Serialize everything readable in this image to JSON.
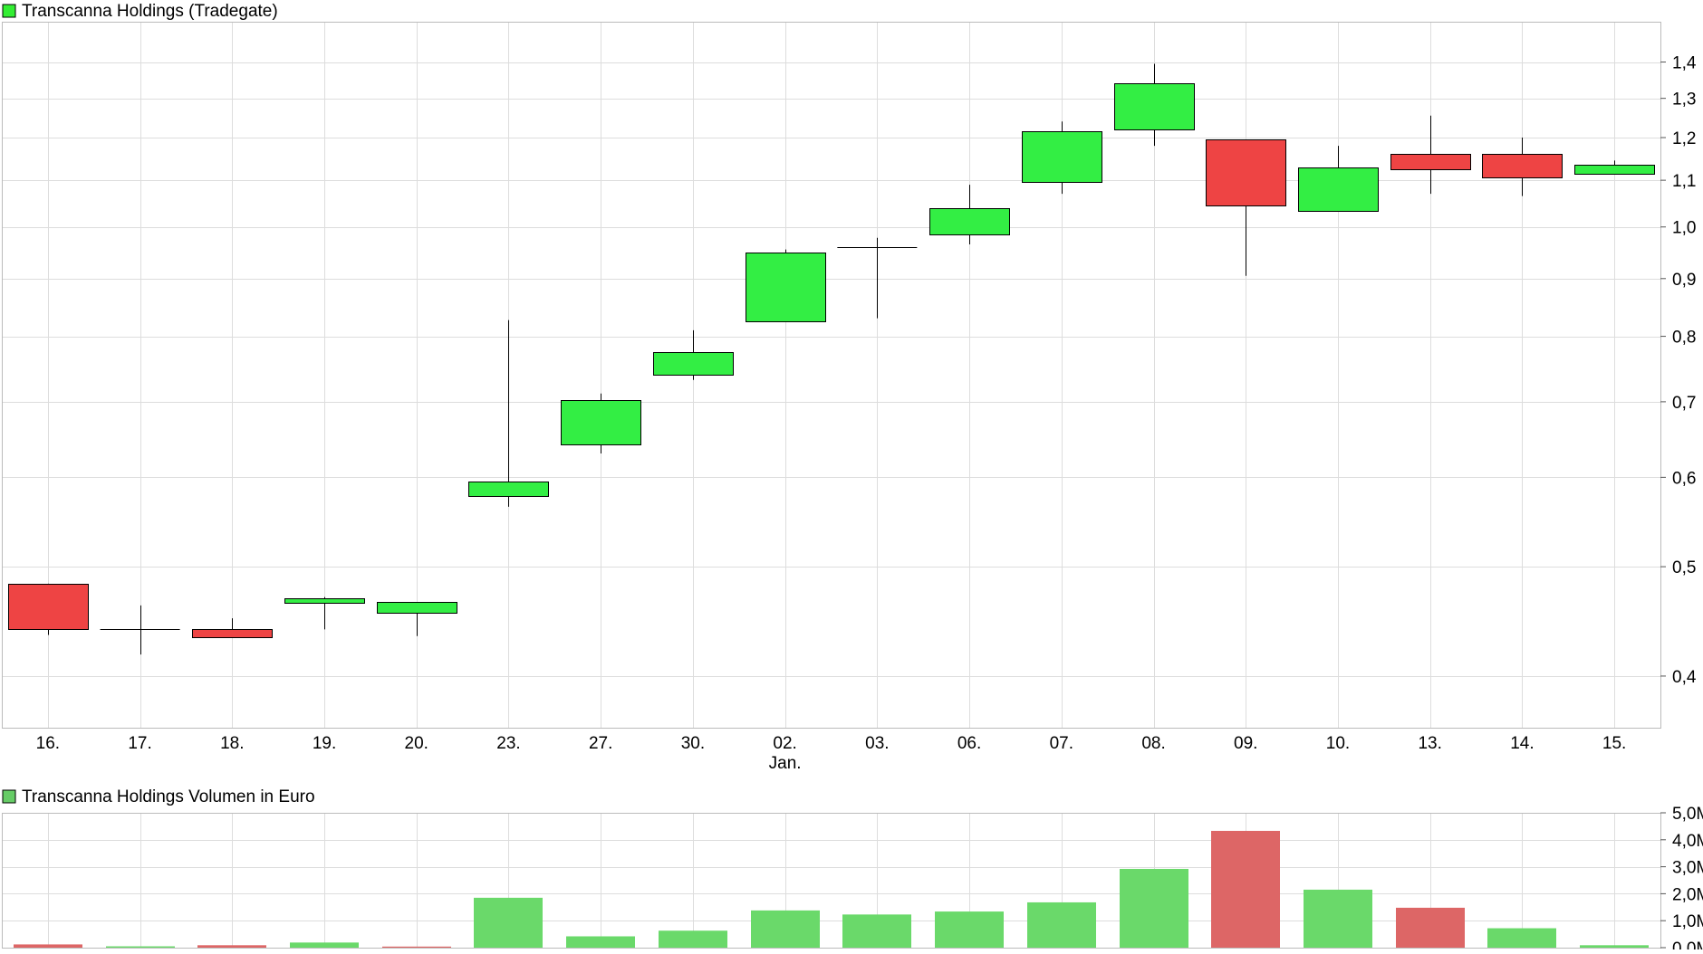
{
  "chart_data": [
    {
      "type": "candlestick",
      "title": "Transcanna Holdings (Tradegate)",
      "legend_color": "#33ee33",
      "up_color": "#33ee44",
      "down_color": "#ee4444",
      "grid": true,
      "y_scale": "log",
      "ylim": [
        0.36,
        1.52
      ],
      "y_ticks": [
        {
          "value": 1.4,
          "label": "1,4"
        },
        {
          "value": 1.3,
          "label": "1,3"
        },
        {
          "value": 1.2,
          "label": "1,2"
        },
        {
          "value": 1.1,
          "label": "1,1"
        },
        {
          "value": 1.0,
          "label": "1,0"
        },
        {
          "value": 0.9,
          "label": "0,9"
        },
        {
          "value": 0.8,
          "label": "0,8"
        },
        {
          "value": 0.7,
          "label": "0,7"
        },
        {
          "value": 0.6,
          "label": "0,6"
        },
        {
          "value": 0.5,
          "label": "0,5"
        },
        {
          "value": 0.4,
          "label": "0,4"
        }
      ],
      "categories": [
        "16.",
        "17.",
        "18.",
        "19.",
        "20.",
        "23.",
        "27.",
        "30.",
        "02.",
        "03.",
        "06.",
        "07.",
        "08.",
        "09.",
        "10.",
        "13.",
        "14.",
        "15."
      ],
      "month_label": {
        "index": 8,
        "text": "Jan."
      },
      "ohlc": [
        {
          "open": 0.483,
          "high": 0.483,
          "low": 0.435,
          "close": 0.44
        },
        {
          "open": 0.44,
          "high": 0.462,
          "low": 0.418,
          "close": 0.44
        },
        {
          "open": 0.44,
          "high": 0.45,
          "low": 0.433,
          "close": 0.433
        },
        {
          "open": 0.465,
          "high": 0.47,
          "low": 0.44,
          "close": 0.469
        },
        {
          "open": 0.455,
          "high": 0.465,
          "low": 0.434,
          "close": 0.465
        },
        {
          "open": 0.578,
          "high": 0.827,
          "low": 0.565,
          "close": 0.595
        },
        {
          "open": 0.642,
          "high": 0.712,
          "low": 0.63,
          "close": 0.703
        },
        {
          "open": 0.74,
          "high": 0.81,
          "low": 0.732,
          "close": 0.775
        },
        {
          "open": 0.825,
          "high": 0.955,
          "low": 0.825,
          "close": 0.95
        },
        {
          "open": 0.96,
          "high": 0.978,
          "low": 0.83,
          "close": 0.96
        },
        {
          "open": 0.985,
          "high": 1.09,
          "low": 0.965,
          "close": 1.04
        },
        {
          "open": 1.095,
          "high": 1.24,
          "low": 1.07,
          "close": 1.215
        },
        {
          "open": 1.22,
          "high": 1.395,
          "low": 1.18,
          "close": 1.34
        },
        {
          "open": 1.195,
          "high": 1.195,
          "low": 0.905,
          "close": 1.045
        },
        {
          "open": 1.035,
          "high": 1.18,
          "low": 1.035,
          "close": 1.13
        },
        {
          "open": 1.16,
          "high": 1.255,
          "low": 1.07,
          "close": 1.125
        },
        {
          "open": 1.16,
          "high": 1.2,
          "low": 1.065,
          "close": 1.105
        },
        {
          "open": 1.115,
          "high": 1.145,
          "low": 1.115,
          "close": 1.135
        }
      ]
    },
    {
      "type": "bar",
      "title": "Transcanna Holdings Volumen in Euro",
      "legend_color": "#66cc66",
      "up_color": "#6ad96a",
      "down_color": "#dd6666",
      "grid": true,
      "ylim": [
        0,
        5000000
      ],
      "y_ticks": [
        {
          "value": 5000000,
          "label": "5,0M"
        },
        {
          "value": 4000000,
          "label": "4,0M"
        },
        {
          "value": 3000000,
          "label": "3,0M"
        },
        {
          "value": 2000000,
          "label": "2,0M"
        },
        {
          "value": 1000000,
          "label": "1,0M"
        },
        {
          "value": 0,
          "label": "0,0M"
        }
      ],
      "categories": [
        "16.",
        "17.",
        "18.",
        "19.",
        "20.",
        "23.",
        "27.",
        "30.",
        "02.",
        "03.",
        "06.",
        "07.",
        "08.",
        "09.",
        "10.",
        "13.",
        "14.",
        "15."
      ],
      "values": [
        120000,
        50000,
        90000,
        190000,
        40000,
        1850000,
        420000,
        630000,
        1380000,
        1230000,
        1340000,
        1680000,
        2920000,
        4330000,
        2150000,
        1480000,
        720000,
        90000
      ],
      "directions": [
        "down",
        "up",
        "down",
        "up",
        "down",
        "up",
        "up",
        "up",
        "up",
        "up",
        "up",
        "up",
        "up",
        "down",
        "up",
        "down",
        "up",
        "up"
      ]
    }
  ]
}
